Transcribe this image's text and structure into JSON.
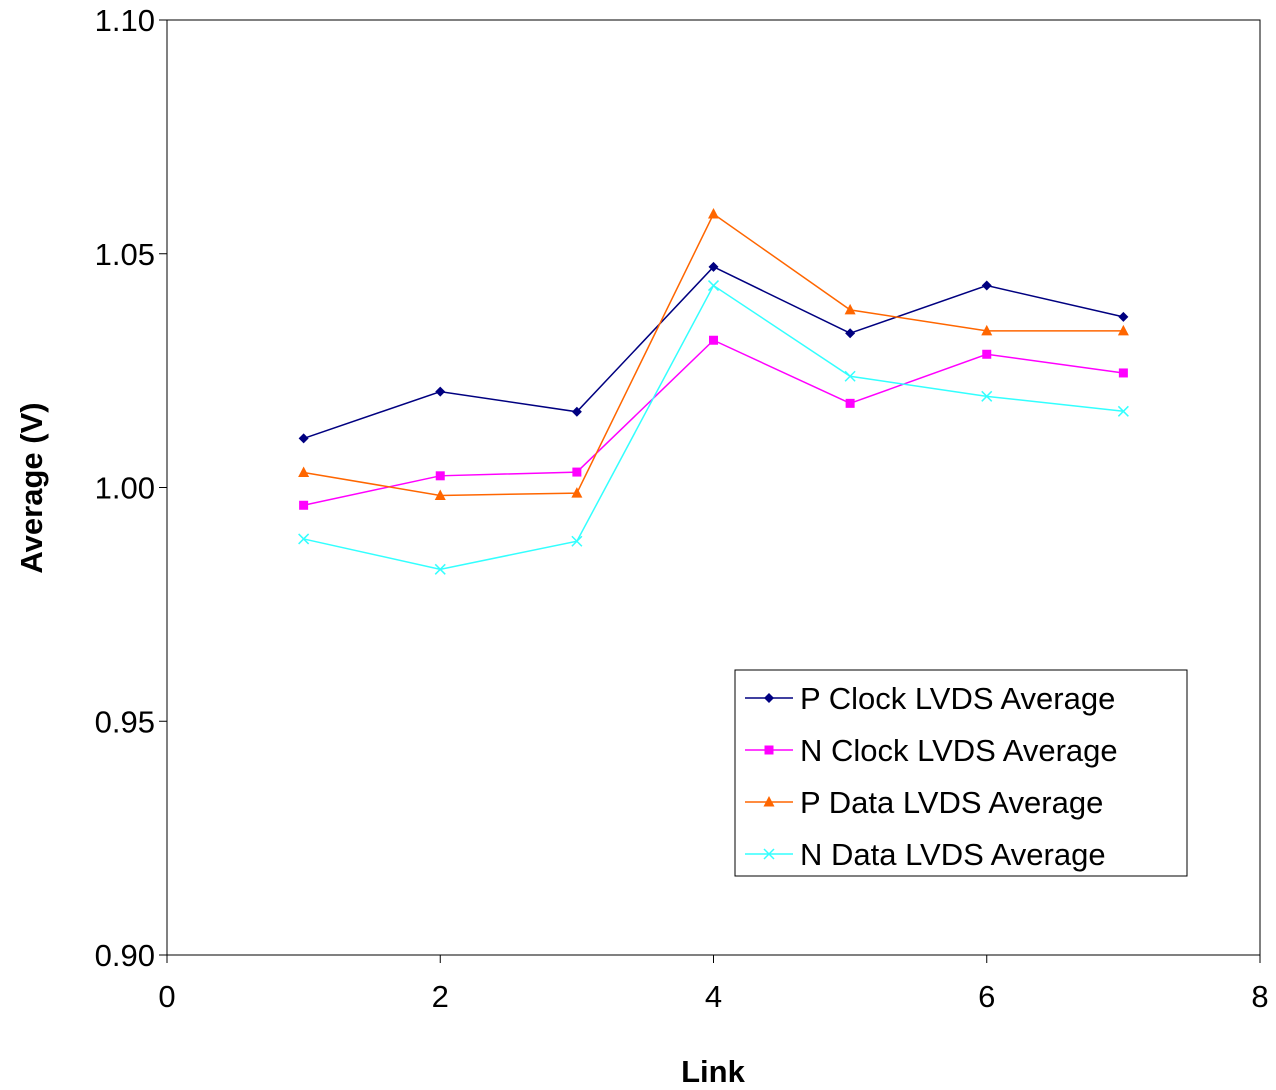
{
  "chart_data": {
    "type": "scatter",
    "title": "",
    "xlabel": "Link",
    "ylabel": "Average (V)",
    "xlim": [
      0,
      8
    ],
    "ylim": [
      0.9,
      1.1
    ],
    "xticks": [
      "0",
      "2",
      "4",
      "6",
      "8"
    ],
    "yticks": [
      "0.90",
      "0.95",
      "1.00",
      "1.05",
      "1.10"
    ],
    "grid": false,
    "legend_position": "bottom-right",
    "x": [
      1,
      2,
      3,
      4,
      5,
      6,
      7
    ],
    "series": [
      {
        "name": "P Clock LVDS Average",
        "color": "#000080",
        "marker": "diamond",
        "values": [
          1.0105,
          1.0205,
          1.0162,
          1.0472,
          1.033,
          1.0432,
          1.0365
        ]
      },
      {
        "name": "N Clock LVDS Average",
        "color": "#FF00FF",
        "marker": "square",
        "values": [
          0.9962,
          1.0025,
          1.0033,
          1.0315,
          1.018,
          1.0285,
          1.0245
        ]
      },
      {
        "name": "P Data LVDS Average",
        "color": "#FF6600",
        "marker": "triangle",
        "values": [
          1.0032,
          0.9983,
          0.9988,
          1.0585,
          1.038,
          1.0335,
          1.0335
        ]
      },
      {
        "name": "N Data LVDS Average",
        "color": "#33FFFF",
        "marker": "x",
        "values": [
          0.989,
          0.9825,
          0.9885,
          1.0432,
          1.0238,
          1.0195,
          1.0163
        ]
      }
    ]
  }
}
